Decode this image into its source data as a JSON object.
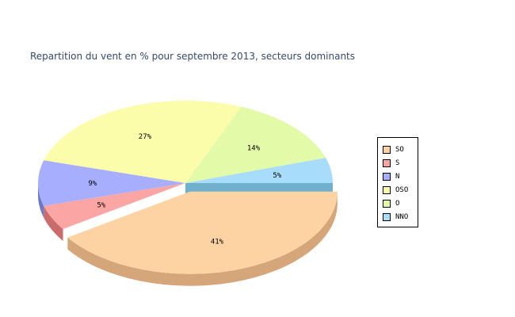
{
  "chart_data": {
    "type": "pie",
    "title": "Repartition du vent en % pour septembre 2013, secteurs dominants",
    "categories": [
      "SO",
      "S",
      "N",
      "OSO",
      "O",
      "NNO"
    ],
    "values": [
      41,
      5,
      9,
      27,
      14,
      5
    ],
    "labels": [
      "41%",
      "5%",
      "9%",
      "27%",
      "14%",
      "5%"
    ],
    "colors": [
      "#fdd3a4",
      "#fba6a5",
      "#a6aefd",
      "#fbfdab",
      "#e3fba8",
      "#a7ddfb"
    ],
    "side_colors": [
      "#d4a67a",
      "#cb6c6c",
      "#6c78c9",
      "#c9cb7d",
      "#b6c97a",
      "#71b0cc"
    ],
    "exploded_slice": "SO",
    "legend_position": "right",
    "style": "3d"
  }
}
